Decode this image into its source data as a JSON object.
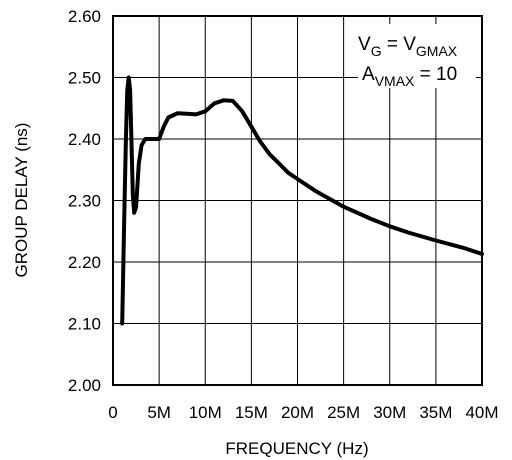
{
  "chart_data": {
    "type": "line",
    "title": "",
    "xlabel": "FREQUENCY (Hz)",
    "ylabel": "GROUP DELAY (ns)",
    "xlim": [
      0,
      40000000
    ],
    "ylim": [
      2.0,
      2.6
    ],
    "grid": true,
    "xticks": [
      {
        "value": 0,
        "label": "0"
      },
      {
        "value": 5000000,
        "label": "5M"
      },
      {
        "value": 10000000,
        "label": "10M"
      },
      {
        "value": 15000000,
        "label": "15M"
      },
      {
        "value": 20000000,
        "label": "20M"
      },
      {
        "value": 25000000,
        "label": "25M"
      },
      {
        "value": 30000000,
        "label": "30M"
      },
      {
        "value": 35000000,
        "label": "35M"
      },
      {
        "value": 40000000,
        "label": "40M"
      }
    ],
    "yticks": [
      {
        "value": 2.0,
        "label": "2.00"
      },
      {
        "value": 2.1,
        "label": "2.10"
      },
      {
        "value": 2.2,
        "label": "2.20"
      },
      {
        "value": 2.3,
        "label": "2.30"
      },
      {
        "value": 2.4,
        "label": "2.40"
      },
      {
        "value": 2.5,
        "label": "2.50"
      },
      {
        "value": 2.6,
        "label": "2.60"
      }
    ],
    "annotation": {
      "line1": {
        "main": "V",
        "sub": "G",
        "mid": " = V",
        "sub2": "GMAX"
      },
      "line2": {
        "main": "A",
        "sub": "VMAX",
        "mid": " = 10"
      }
    },
    "series": [
      {
        "values": [
          [
            1000000,
            2.1
          ],
          [
            1200000,
            2.26
          ],
          [
            1400000,
            2.4
          ],
          [
            1550000,
            2.48
          ],
          [
            1700000,
            2.5
          ],
          [
            1850000,
            2.48
          ],
          [
            2000000,
            2.4
          ],
          [
            2150000,
            2.31
          ],
          [
            2300000,
            2.28
          ],
          [
            2500000,
            2.29
          ],
          [
            2800000,
            2.36
          ],
          [
            3100000,
            2.39
          ],
          [
            3500000,
            2.4
          ],
          [
            4000000,
            2.4
          ],
          [
            4500000,
            2.4
          ],
          [
            5000000,
            2.4
          ],
          [
            5500000,
            2.42
          ],
          [
            6000000,
            2.435
          ],
          [
            7000000,
            2.442
          ],
          [
            8000000,
            2.441
          ],
          [
            9000000,
            2.44
          ],
          [
            10000000,
            2.445
          ],
          [
            11000000,
            2.458
          ],
          [
            12000000,
            2.463
          ],
          [
            13000000,
            2.462
          ],
          [
            14000000,
            2.445
          ],
          [
            15000000,
            2.42
          ],
          [
            16000000,
            2.395
          ],
          [
            17000000,
            2.375
          ],
          [
            18000000,
            2.36
          ],
          [
            19000000,
            2.345
          ],
          [
            20000000,
            2.335
          ],
          [
            22000000,
            2.315
          ],
          [
            25000000,
            2.29
          ],
          [
            28000000,
            2.27
          ],
          [
            30000000,
            2.258
          ],
          [
            32000000,
            2.248
          ],
          [
            35000000,
            2.235
          ],
          [
            38000000,
            2.223
          ],
          [
            40000000,
            2.213
          ]
        ]
      }
    ]
  }
}
